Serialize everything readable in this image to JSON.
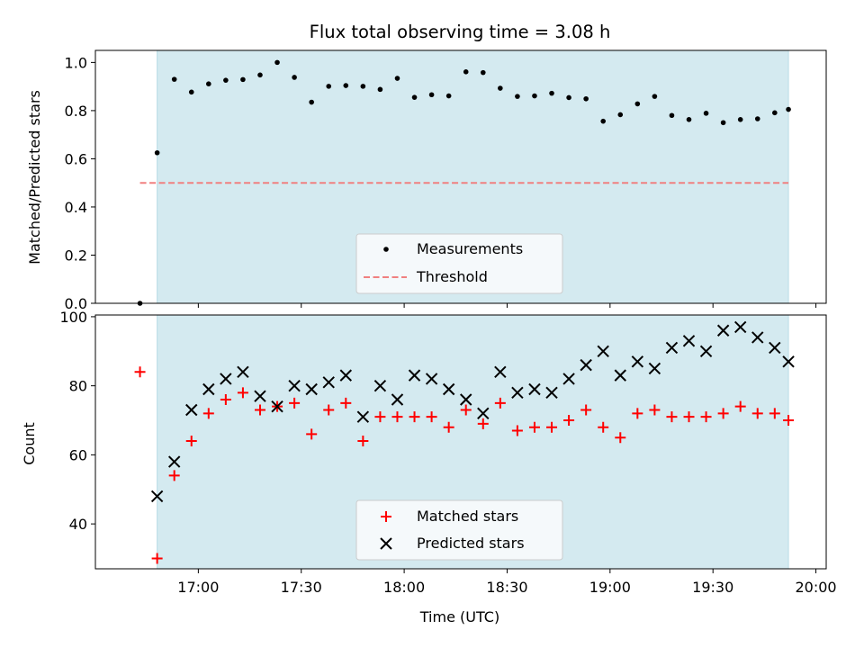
{
  "chart_data": [
    {
      "type": "scatter",
      "panel": "top",
      "title": "Flux total observing time = 3.08 h",
      "ylabel": "Matched/Predicted stars",
      "xlabel": "",
      "ylim": [
        0.0,
        1.05
      ],
      "yticks": [
        "0.0",
        "0.2",
        "0.4",
        "0.6",
        "0.8",
        "1.0"
      ],
      "ytick_values": [
        0.0,
        0.2,
        0.4,
        0.6,
        0.8,
        1.0
      ],
      "observing_window": {
        "start": "16:48",
        "end": "19:52",
        "color": "#d4eaf0"
      },
      "series": [
        {
          "name": "Measurements",
          "marker": "dot",
          "color": "#000000",
          "times": [
            "16:43",
            "16:48",
            "16:53",
            "16:58",
            "17:03",
            "17:08",
            "17:13",
            "17:18",
            "17:23",
            "17:28",
            "17:33",
            "17:38",
            "17:43",
            "17:48",
            "17:53",
            "17:58",
            "18:03",
            "18:08",
            "18:13",
            "18:18",
            "18:23",
            "18:28",
            "18:33",
            "18:38",
            "18:43",
            "18:48",
            "18:53",
            "18:58",
            "19:03",
            "19:08",
            "19:13",
            "19:18",
            "19:23",
            "19:28",
            "19:33",
            "19:38",
            "19:43",
            "19:48",
            "19:52"
          ],
          "values": [
            0.0,
            0.625,
            0.93,
            0.877,
            0.911,
            0.926,
            0.929,
            0.948,
            1.0,
            0.938,
            0.835,
            0.901,
            0.904,
            0.901,
            0.888,
            0.934,
            0.855,
            0.866,
            0.861,
            0.961,
            0.958,
            0.893,
            0.859,
            0.861,
            0.872,
            0.854,
            0.849,
            0.756,
            0.783,
            0.828,
            0.859,
            0.78,
            0.763,
            0.789,
            0.75,
            0.763,
            0.766,
            0.791,
            0.805
          ]
        },
        {
          "name": "Threshold",
          "marker": "dashed-line",
          "color": "#f08080",
          "value": 0.5,
          "from": "16:43",
          "to": "19:52"
        }
      ],
      "legend": {
        "entries": [
          "Measurements",
          "Threshold"
        ],
        "placement": "lower-center"
      }
    },
    {
      "type": "scatter",
      "panel": "bottom",
      "ylabel": "Count",
      "xlabel": "Time (UTC)",
      "ylim": [
        27,
        100.5
      ],
      "yticks": [
        "40",
        "60",
        "80",
        "100"
      ],
      "ytick_values": [
        40,
        60,
        80,
        100
      ],
      "xlim": [
        "16:30",
        "20:03"
      ],
      "xticks": [
        "17:00",
        "17:30",
        "18:00",
        "18:30",
        "19:00",
        "19:30",
        "20:00"
      ],
      "observing_window": {
        "start": "16:48",
        "end": "19:52",
        "color": "#d4eaf0"
      },
      "series": [
        {
          "name": "Matched stars",
          "marker": "+",
          "color": "#ff0000",
          "times": [
            "16:43",
            "16:48",
            "16:53",
            "16:58",
            "17:03",
            "17:08",
            "17:13",
            "17:18",
            "17:23",
            "17:28",
            "17:33",
            "17:38",
            "17:43",
            "17:48",
            "17:53",
            "17:58",
            "18:03",
            "18:08",
            "18:13",
            "18:18",
            "18:23",
            "18:28",
            "18:33",
            "18:38",
            "18:43",
            "18:48",
            "18:53",
            "18:58",
            "19:03",
            "19:08",
            "19:13",
            "19:18",
            "19:23",
            "19:28",
            "19:33",
            "19:38",
            "19:43",
            "19:48",
            "19:52"
          ],
          "values": [
            84,
            30,
            54,
            64,
            72,
            76,
            78,
            73,
            74,
            75,
            66,
            73,
            75,
            64,
            71,
            71,
            71,
            71,
            68,
            73,
            69,
            75,
            67,
            68,
            68,
            70,
            73,
            68,
            65,
            72,
            73,
            71,
            71,
            71,
            72,
            74,
            72,
            72,
            70
          ]
        },
        {
          "name": "Predicted stars",
          "marker": "x",
          "color": "#000000",
          "times": [
            "16:48",
            "16:53",
            "16:58",
            "17:03",
            "17:08",
            "17:13",
            "17:18",
            "17:23",
            "17:28",
            "17:33",
            "17:38",
            "17:43",
            "17:48",
            "17:53",
            "17:58",
            "18:03",
            "18:08",
            "18:13",
            "18:18",
            "18:23",
            "18:28",
            "18:33",
            "18:38",
            "18:43",
            "18:48",
            "18:53",
            "18:58",
            "19:03",
            "19:08",
            "19:13",
            "19:18",
            "19:23",
            "19:28",
            "19:33",
            "19:38",
            "19:43",
            "19:48",
            "19:52"
          ],
          "values": [
            48,
            58,
            73,
            79,
            82,
            84,
            77,
            74,
            80,
            79,
            81,
            83,
            71,
            80,
            76,
            83,
            82,
            79,
            76,
            72,
            84,
            78,
            79,
            78,
            82,
            86,
            90,
            83,
            87,
            85,
            91,
            93,
            90,
            96,
            97,
            94,
            91,
            87
          ]
        }
      ],
      "legend": {
        "entries": [
          "Matched stars",
          "Predicted stars"
        ],
        "placement": "lower-center"
      }
    }
  ]
}
